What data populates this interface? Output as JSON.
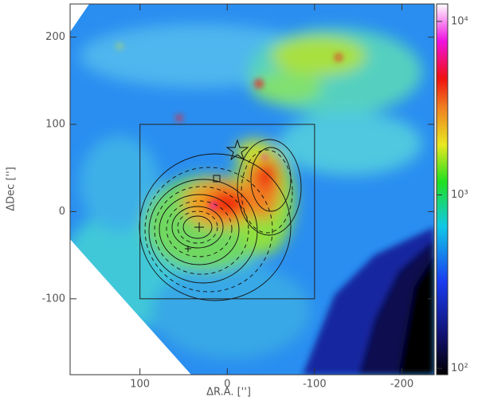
{
  "chart_data": {
    "type": "image",
    "xlabel": "ΔR.A. ['']",
    "ylabel": "ΔDec ['']",
    "xlim": [
      180,
      -237
    ],
    "ylim": [
      -187,
      238
    ],
    "xticks": [
      100,
      0,
      -100,
      -200
    ],
    "yticks": [
      -100,
      0,
      100,
      200
    ],
    "colorbar": {
      "lim": [
        92,
        12600
      ],
      "log_scale": true,
      "ticks": [
        {
          "value": 100,
          "label": "10²"
        },
        {
          "value": 1000,
          "label": "10³"
        },
        {
          "value": 10000,
          "label": "10⁴"
        }
      ]
    },
    "box": {
      "x": [
        100,
        -100
      ],
      "y": [
        -100,
        100
      ]
    }
  }
}
